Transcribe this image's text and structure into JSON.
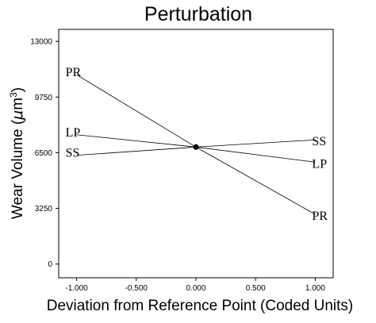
{
  "chart_data": {
    "type": "line",
    "title": "Perturbation",
    "xlabel": "Deviation from Reference Point (Coded Units)",
    "ylabel_main": "Wear Volume (",
    "ylabel_mu": "μ",
    "ylabel_unit": "m",
    "ylabel_sup": "3",
    "ylabel_close": ")",
    "xlim": [
      -1.15,
      1.15
    ],
    "ylim": [
      -800,
      13700
    ],
    "x_ticks": [
      -1.0,
      -0.5,
      0.0,
      0.5,
      1.0
    ],
    "x_tick_labels": [
      "-1.000",
      "-0.500",
      "0.000",
      "0.500",
      "1.000"
    ],
    "y_ticks": [
      0,
      3250,
      6500,
      9750,
      13000
    ],
    "y_tick_labels": [
      "0",
      "3250",
      "6500",
      "9750",
      "13000"
    ],
    "reference_point": {
      "x": 0,
      "y": 6830
    },
    "series": [
      {
        "name": "PR",
        "x": [
          -1,
          0,
          1
        ],
        "y": [
          11050,
          6830,
          2900
        ]
      },
      {
        "name": "LP",
        "x": [
          -1,
          0,
          1
        ],
        "y": [
          7550,
          6830,
          5950
        ]
      },
      {
        "name": "SS",
        "x": [
          -1,
          0,
          1
        ],
        "y": [
          6350,
          6830,
          7250
        ]
      }
    ],
    "grid": false,
    "legend": "none"
  }
}
